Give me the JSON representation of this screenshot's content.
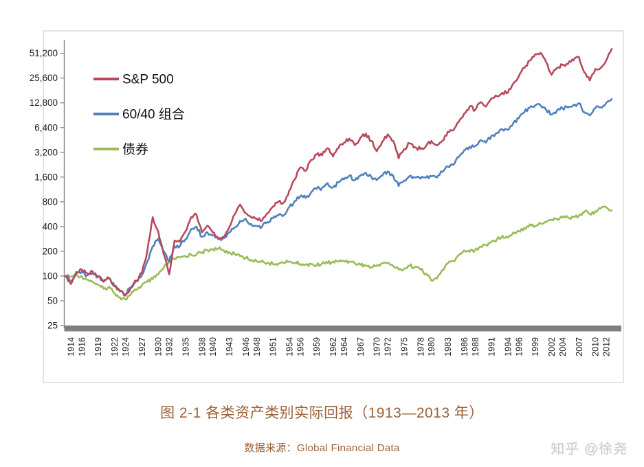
{
  "figure": {
    "caption": "图 2-1 各类资产类别实际回报（1913—2013 年）",
    "source": "数据来源：Global Financial Data",
    "watermark": "知乎 @徐尧"
  },
  "colors": {
    "caption_brown": "#9A6038",
    "watermark_gray": "#cccccc",
    "axis_gray": "#808080",
    "baseline_bar": "#7f7f7f",
    "chart_border": "#d9d9d9",
    "tick_text": "#1a1a1a",
    "sp500_red": "#B8495A",
    "blend_blue": "#4F81BD",
    "bond_green": "#9BBB59"
  },
  "chart_data": {
    "type": "line",
    "title": "",
    "xlabel": "",
    "ylabel": "",
    "y_scale": "log2",
    "ylim": [
      25,
      51200
    ],
    "grid": false,
    "legend_position": "top-left-inside",
    "y_ticks": [
      {
        "label": "51,200",
        "v": 51200
      },
      {
        "label": "25,600",
        "v": 25600
      },
      {
        "label": "12,800",
        "v": 12800
      },
      {
        "label": "6,400",
        "v": 6400
      },
      {
        "label": "3,200",
        "v": 3200
      },
      {
        "label": "1,600",
        "v": 1600
      },
      {
        "label": "800",
        "v": 800
      },
      {
        "label": "400",
        "v": 400
      },
      {
        "label": "200",
        "v": 200
      },
      {
        "label": "100",
        "v": 100
      },
      {
        "label": "50",
        "v": 50
      },
      {
        "label": "25",
        "v": 25
      }
    ],
    "x_tick_years": [
      1914,
      1916,
      1919,
      1922,
      1924,
      1927,
      1930,
      1932,
      1935,
      1938,
      1940,
      1943,
      1946,
      1948,
      1951,
      1954,
      1956,
      1959,
      1962,
      1964,
      1967,
      1970,
      1972,
      1975,
      1978,
      1980,
      1983,
      1986,
      1988,
      1991,
      1994,
      1996,
      1999,
      2002,
      2004,
      2007,
      2010,
      2012
    ],
    "x_start": 1913,
    "x_end": 2013,
    "series": [
      {
        "name": "债券",
        "color": "#9BBB59",
        "values": [
          100,
          98,
          102,
          100,
          90,
          85,
          78,
          70,
          74,
          62,
          55,
          52,
          60,
          68,
          77,
          85,
          92,
          105,
          125,
          148,
          160,
          168,
          175,
          182,
          182,
          195,
          205,
          213,
          215,
          205,
          196,
          186,
          175,
          165,
          158,
          152,
          155,
          145,
          140,
          142,
          144,
          150,
          146,
          140,
          138,
          140,
          135,
          142,
          144,
          150,
          150,
          152,
          150,
          143,
          137,
          134,
          127,
          133,
          143,
          145,
          133,
          120,
          123,
          133,
          130,
          120,
          107,
          88,
          93,
          118,
          142,
          152,
          178,
          205,
          197,
          207,
          228,
          240,
          262,
          280,
          310,
          292,
          340,
          352,
          385,
          425,
          405,
          435,
          455,
          485,
          495,
          515,
          515,
          525,
          545,
          605,
          565,
          615,
          665,
          685,
          630
        ]
      },
      {
        "name": "60/40 组合",
        "color": "#4F81BD",
        "values": [
          100,
          88,
          106,
          112,
          102,
          108,
          98,
          86,
          94,
          76,
          66,
          60,
          73,
          87,
          102,
          150,
          230,
          285,
          200,
          150,
          230,
          232,
          280,
          370,
          400,
          300,
          340,
          310,
          280,
          290,
          340,
          390,
          470,
          500,
          430,
          405,
          400,
          455,
          505,
          550,
          550,
          690,
          820,
          940,
          890,
          1050,
          1150,
          1180,
          1350,
          1200,
          1380,
          1500,
          1660,
          1470,
          1660,
          1800,
          1620,
          1470,
          1660,
          1870,
          1660,
          1250,
          1450,
          1640,
          1580,
          1530,
          1580,
          1630,
          1580,
          1850,
          2150,
          2250,
          2800,
          3400,
          3750,
          3800,
          4500,
          4200,
          5100,
          5500,
          6100,
          6000,
          7300,
          8300,
          9800,
          11200,
          11900,
          11900,
          10500,
          9200,
          10400,
          11000,
          11200,
          12000,
          12600,
          9800,
          9000,
          11000,
          11300,
          12800,
          14200
        ]
      },
      {
        "name": "S&P 500",
        "color": "#B8495A",
        "values": [
          100,
          80,
          112,
          120,
          108,
          113,
          100,
          85,
          95,
          75,
          65,
          58,
          72,
          88,
          108,
          200,
          520,
          350,
          185,
          105,
          270,
          260,
          350,
          520,
          560,
          340,
          410,
          340,
          285,
          300,
          390,
          560,
          740,
          580,
          520,
          500,
          470,
          580,
          700,
          800,
          790,
          1100,
          1500,
          2100,
          1900,
          2600,
          3000,
          2950,
          3600,
          2850,
          3600,
          4200,
          4700,
          3900,
          4800,
          5400,
          4400,
          3300,
          4300,
          5300,
          4400,
          2700,
          3500,
          4100,
          3700,
          3500,
          3800,
          4400,
          3900,
          4400,
          5700,
          5900,
          7500,
          9500,
          11500,
          10500,
          13000,
          11500,
          14500,
          15500,
          17000,
          17000,
          22000,
          27000,
          34000,
          42000,
          50000,
          52000,
          40000,
          28000,
          34000,
          37000,
          38000,
          42000,
          46000,
          30000,
          24000,
          33000,
          34000,
          42000,
          58000
        ]
      }
    ],
    "legend_order": [
      "S&P 500",
      "60/40 组合",
      "债券"
    ]
  }
}
